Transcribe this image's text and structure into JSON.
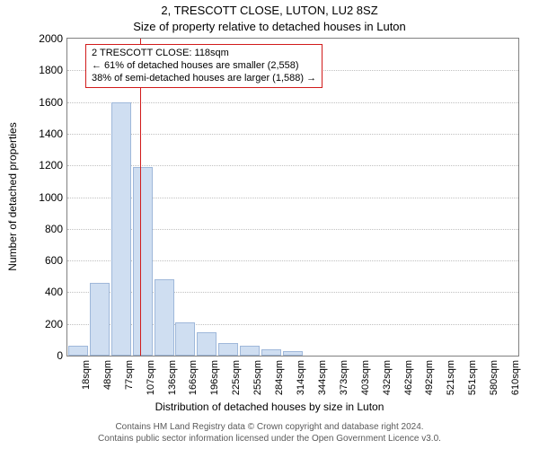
{
  "title": "2, TRESCOTT CLOSE, LUTON, LU2 8SZ",
  "subtitle": "Size of property relative to detached houses in Luton",
  "ylabel": "Number of detached properties",
  "xlabel": "Distribution of detached houses by size in Luton",
  "footer_line1": "Contains HM Land Registry data © Crown copyright and database right 2024.",
  "footer_line2": "Contains public sector information licensed under the Open Government Licence v3.0.",
  "chart": {
    "type": "bar",
    "plot_background": "#ffffff",
    "plot_border_color": "#808080",
    "gridline_color": "#c0c0c0",
    "bar_fill": "#cfdef1",
    "bar_border": "#9fb8da",
    "refline_color": "#d11b1b",
    "annotation_border": "#d11b1b",
    "title_fontsize": 13,
    "label_fontsize": 12,
    "tick_fontsize": 11,
    "ylim": [
      0,
      2000
    ],
    "ytick_step": 200,
    "yticks": [
      0,
      200,
      400,
      600,
      800,
      1000,
      1200,
      1400,
      1600,
      1800,
      2000
    ],
    "x_categories": [
      "18sqm",
      "48sqm",
      "77sqm",
      "107sqm",
      "136sqm",
      "166sqm",
      "196sqm",
      "225sqm",
      "255sqm",
      "284sqm",
      "314sqm",
      "344sqm",
      "373sqm",
      "403sqm",
      "432sqm",
      "462sqm",
      "492sqm",
      "521sqm",
      "551sqm",
      "580sqm",
      "610sqm"
    ],
    "values": [
      60,
      460,
      1600,
      1190,
      480,
      210,
      150,
      80,
      60,
      40,
      30,
      0,
      0,
      0,
      0,
      0,
      0,
      0,
      0,
      0,
      0
    ],
    "refline_x_index": 3.4,
    "bar_width_ratio": 0.92
  },
  "annotation": {
    "line1": "2 TRESCOTT CLOSE: 118sqm",
    "line2": "← 61% of detached houses are smaller (2,558)",
    "line3": "38% of semi-detached houses are larger (1,588) →"
  }
}
